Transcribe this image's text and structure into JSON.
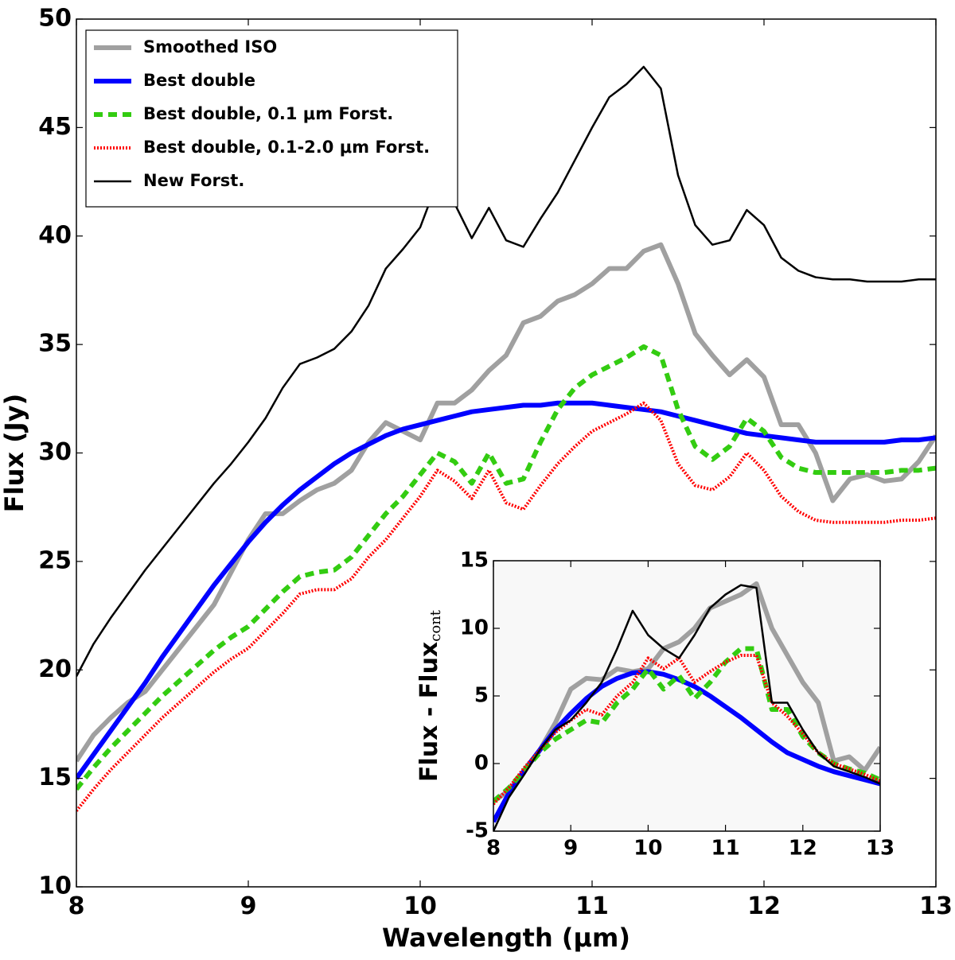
{
  "chart_data": [
    {
      "type": "line",
      "xlabel": "Wavelength (μm)",
      "ylabel": "Flux (Jy)",
      "xlim": [
        8,
        13
      ],
      "ylim": [
        10,
        50
      ],
      "xticks": [
        8,
        9,
        10,
        11,
        12,
        13
      ],
      "yticks": [
        10,
        15,
        20,
        25,
        30,
        35,
        40,
        45,
        50
      ],
      "legend": "upper left",
      "x": [
        8.0,
        8.1,
        8.2,
        8.3,
        8.4,
        8.5,
        8.6,
        8.7,
        8.8,
        8.9,
        9.0,
        9.1,
        9.2,
        9.3,
        9.4,
        9.5,
        9.6,
        9.7,
        9.8,
        9.9,
        10.0,
        10.1,
        10.2,
        10.3,
        10.4,
        10.5,
        10.6,
        10.7,
        10.8,
        10.9,
        11.0,
        11.1,
        11.2,
        11.3,
        11.4,
        11.5,
        11.6,
        11.7,
        11.8,
        11.9,
        12.0,
        12.1,
        12.2,
        12.3,
        12.4,
        12.5,
        12.6,
        12.7,
        12.8,
        12.9,
        13.0
      ],
      "series": [
        {
          "name": "Smoothed ISO",
          "color": "#a0a0a0",
          "style": "solid",
          "values": [
            15.8,
            17.0,
            17.8,
            18.5,
            19.0,
            20.0,
            21.0,
            22.0,
            23.0,
            24.5,
            26.0,
            27.2,
            27.2,
            27.8,
            28.3,
            28.6,
            29.2,
            30.5,
            31.4,
            31.0,
            30.6,
            32.3,
            32.3,
            32.9,
            33.8,
            34.5,
            36.0,
            36.3,
            37.0,
            37.3,
            37.8,
            38.5,
            38.5,
            39.3,
            39.6,
            37.8,
            35.5,
            34.5,
            33.6,
            34.3,
            33.5,
            31.3,
            31.3,
            30.0,
            27.8,
            28.8,
            29.0,
            28.7,
            28.8,
            29.6,
            30.8
          ]
        },
        {
          "name": "Best double",
          "color": "#0000ff",
          "style": "solid",
          "values": [
            15.0,
            16.1,
            17.2,
            18.3,
            19.4,
            20.6,
            21.7,
            22.8,
            23.9,
            24.9,
            25.9,
            26.8,
            27.6,
            28.3,
            28.9,
            29.5,
            30.0,
            30.4,
            30.8,
            31.1,
            31.3,
            31.5,
            31.7,
            31.9,
            32.0,
            32.1,
            32.2,
            32.2,
            32.3,
            32.3,
            32.3,
            32.2,
            32.1,
            32.0,
            31.9,
            31.7,
            31.5,
            31.3,
            31.1,
            30.9,
            30.8,
            30.7,
            30.6,
            30.5,
            30.5,
            30.5,
            30.5,
            30.5,
            30.6,
            30.6,
            30.7
          ]
        },
        {
          "name": "Best double, 0.1 μm Forst.",
          "color": "#33cc11",
          "style": "dashed",
          "values": [
            14.5,
            15.5,
            16.4,
            17.2,
            18.0,
            18.8,
            19.5,
            20.2,
            20.9,
            21.5,
            22.0,
            22.8,
            23.6,
            24.3,
            24.5,
            24.6,
            25.2,
            26.2,
            27.2,
            28.0,
            29.0,
            30.0,
            29.6,
            28.6,
            30.0,
            28.6,
            28.8,
            30.5,
            32.0,
            33.0,
            33.6,
            34.0,
            34.4,
            34.9,
            34.5,
            32.0,
            30.3,
            29.7,
            30.3,
            31.6,
            31.0,
            29.8,
            29.3,
            29.1,
            29.1,
            29.1,
            29.1,
            29.1,
            29.2,
            29.2,
            29.3
          ]
        },
        {
          "name": "Best double, 0.1-2.0 μm Forst.",
          "color": "#ff0000",
          "style": "dotted",
          "values": [
            13.5,
            14.5,
            15.4,
            16.2,
            17.0,
            17.8,
            18.5,
            19.2,
            19.9,
            20.5,
            21.0,
            21.8,
            22.6,
            23.5,
            23.7,
            23.7,
            24.2,
            25.2,
            26.0,
            27.0,
            28.0,
            29.2,
            28.7,
            27.9,
            29.2,
            27.7,
            27.4,
            28.5,
            29.5,
            30.3,
            31.0,
            31.4,
            31.8,
            32.3,
            31.5,
            29.5,
            28.5,
            28.3,
            28.9,
            30.0,
            29.2,
            28.0,
            27.3,
            26.9,
            26.8,
            26.8,
            26.8,
            26.8,
            26.9,
            26.9,
            27.0
          ]
        },
        {
          "name": "New Forst.",
          "color": "#000000",
          "style": "thin",
          "values": [
            19.7,
            21.2,
            22.4,
            23.5,
            24.6,
            25.6,
            26.6,
            27.6,
            28.6,
            29.5,
            30.5,
            31.6,
            33.0,
            34.1,
            34.4,
            34.8,
            35.6,
            36.8,
            38.5,
            39.4,
            40.4,
            42.5,
            41.5,
            39.9,
            41.3,
            39.8,
            39.5,
            40.8,
            42.0,
            43.5,
            45.0,
            46.4,
            47.0,
            47.8,
            46.8,
            42.8,
            40.5,
            39.6,
            39.8,
            41.2,
            40.5,
            39.0,
            38.4,
            38.1,
            38.0,
            38.0,
            37.9,
            37.9,
            37.9,
            38.0,
            38.0
          ]
        }
      ]
    },
    {
      "type": "line",
      "ylabel": "Flux - Flux",
      "ylabel_sub": "cont",
      "xlim": [
        8,
        13
      ],
      "ylim": [
        -5,
        15
      ],
      "xticks": [
        8,
        9,
        10,
        11,
        12,
        13
      ],
      "yticks": [
        -5,
        0,
        5,
        10,
        15
      ],
      "background": "#f8f8f8",
      "x": [
        8.0,
        8.2,
        8.4,
        8.6,
        8.8,
        9.0,
        9.2,
        9.4,
        9.6,
        9.8,
        10.0,
        10.2,
        10.4,
        10.6,
        10.8,
        11.0,
        11.2,
        11.4,
        11.6,
        11.8,
        12.0,
        12.2,
        12.4,
        12.6,
        12.8,
        13.0
      ],
      "series": [
        {
          "color": "#a0a0a0",
          "style": "solid",
          "values": [
            -2.8,
            -2.0,
            -0.5,
            1.0,
            3.0,
            5.5,
            6.3,
            6.2,
            7.0,
            6.8,
            7.0,
            8.5,
            9.0,
            10.0,
            11.5,
            12.0,
            12.5,
            13.3,
            10.0,
            8.0,
            6.0,
            4.5,
            0.2,
            0.5,
            -0.5,
            1.2
          ]
        },
        {
          "color": "#0000ff",
          "style": "solid",
          "values": [
            -4.3,
            -2.2,
            -0.5,
            1.0,
            2.5,
            3.7,
            4.8,
            5.7,
            6.3,
            6.7,
            6.8,
            6.6,
            6.2,
            5.7,
            5.0,
            4.2,
            3.4,
            2.5,
            1.6,
            0.8,
            0.3,
            -0.2,
            -0.6,
            -0.9,
            -1.2,
            -1.5
          ]
        },
        {
          "color": "#33cc11",
          "style": "dashed",
          "values": [
            -2.8,
            -1.8,
            -0.5,
            0.8,
            1.8,
            2.5,
            3.2,
            3.0,
            4.5,
            5.5,
            7.0,
            5.5,
            6.5,
            4.8,
            6.0,
            7.5,
            8.5,
            8.5,
            4.0,
            4.0,
            2.0,
            0.8,
            0.0,
            -0.4,
            -0.7,
            -1.2
          ]
        },
        {
          "color": "#ff0000",
          "style": "dotted",
          "values": [
            -3.0,
            -1.8,
            -0.3,
            1.0,
            2.3,
            3.2,
            4.0,
            3.6,
            5.0,
            6.0,
            7.8,
            7.0,
            7.8,
            6.0,
            6.8,
            7.5,
            8.0,
            8.0,
            4.5,
            3.5,
            2.2,
            0.8,
            0.0,
            -0.4,
            -0.8,
            -1.3
          ]
        },
        {
          "color": "#000000",
          "style": "thin",
          "values": [
            -5.0,
            -2.5,
            -0.8,
            1.0,
            2.5,
            3.2,
            4.5,
            6.0,
            8.5,
            11.3,
            9.5,
            8.5,
            7.8,
            9.5,
            11.5,
            12.5,
            13.2,
            13.0,
            4.5,
            4.5,
            2.5,
            0.8,
            -0.2,
            -0.6,
            -1.0,
            -1.5
          ]
        }
      ]
    }
  ]
}
